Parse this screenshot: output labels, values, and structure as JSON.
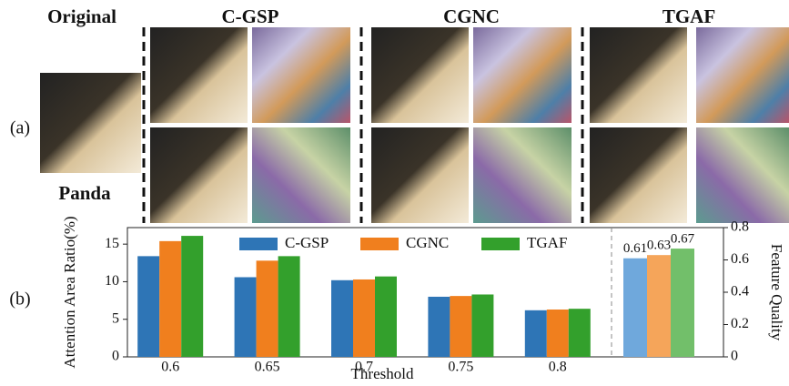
{
  "panel_a": {
    "label": "(a)",
    "original": "Original",
    "panda": "Panda",
    "methods": [
      "C-GSP",
      "CGNC",
      "TGAF"
    ]
  },
  "panel_b": {
    "label": "(b)"
  },
  "chart_data": [
    {
      "type": "grouped_bar",
      "xlabel": "Threshold",
      "ylabel": "Attention Area Ratio(%)",
      "categories": [
        "0.6",
        "0.65",
        "0.7",
        "0.75",
        "0.8"
      ],
      "series": [
        {
          "name": "C-GSP",
          "color": "#2e75b6",
          "values": [
            13.4,
            10.6,
            10.2,
            8.0,
            6.2
          ]
        },
        {
          "name": "CGNC",
          "color": "#f07f1e",
          "values": [
            15.4,
            12.8,
            10.3,
            8.1,
            6.3
          ]
        },
        {
          "name": "TGAF",
          "color": "#33a02c",
          "values": [
            16.1,
            13.4,
            10.7,
            8.3,
            6.4
          ]
        }
      ],
      "ylim": [
        0,
        17.2
      ],
      "yticks": [
        0,
        5,
        10,
        15
      ],
      "legend": "top"
    },
    {
      "type": "bar",
      "ylabel": "Feature Quality",
      "categories": [
        null,
        null,
        null
      ],
      "values": [
        0.61,
        0.63,
        0.67
      ],
      "colors": [
        "#6fa8dc",
        "#f5a55a",
        "#72bf6a"
      ],
      "ylim": [
        0,
        0.8
      ],
      "yticks": [
        0,
        0.2,
        0.4,
        0.6,
        0.8
      ]
    }
  ]
}
